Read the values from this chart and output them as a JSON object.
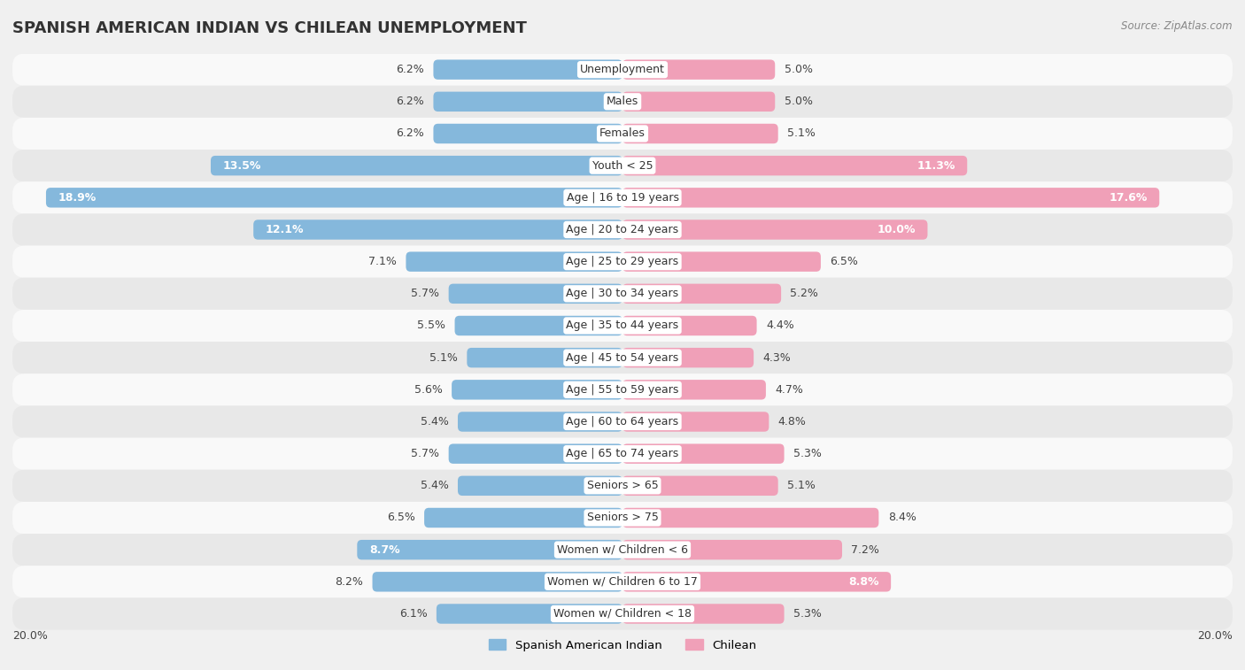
{
  "title": "SPANISH AMERICAN INDIAN VS CHILEAN UNEMPLOYMENT",
  "source": "Source: ZipAtlas.com",
  "categories": [
    "Unemployment",
    "Males",
    "Females",
    "Youth < 25",
    "Age | 16 to 19 years",
    "Age | 20 to 24 years",
    "Age | 25 to 29 years",
    "Age | 30 to 34 years",
    "Age | 35 to 44 years",
    "Age | 45 to 54 years",
    "Age | 55 to 59 years",
    "Age | 60 to 64 years",
    "Age | 65 to 74 years",
    "Seniors > 65",
    "Seniors > 75",
    "Women w/ Children < 6",
    "Women w/ Children 6 to 17",
    "Women w/ Children < 18"
  ],
  "spanish_american_indian": [
    6.2,
    6.2,
    6.2,
    13.5,
    18.9,
    12.1,
    7.1,
    5.7,
    5.5,
    5.1,
    5.6,
    5.4,
    5.7,
    5.4,
    6.5,
    8.7,
    8.2,
    6.1
  ],
  "chilean": [
    5.0,
    5.0,
    5.1,
    11.3,
    17.6,
    10.0,
    6.5,
    5.2,
    4.4,
    4.3,
    4.7,
    4.8,
    5.3,
    5.1,
    8.4,
    7.2,
    8.8,
    5.3
  ],
  "color_sai": "#85b8dc",
  "color_chilean": "#f0a0b8",
  "axis_max": 20.0,
  "bar_height": 0.62,
  "background_color": "#f0f0f0",
  "row_color_light": "#f9f9f9",
  "row_color_dark": "#e8e8e8",
  "legend_label_sai": "Spanish American Indian",
  "legend_label_chilean": "Chilean",
  "white_text_threshold": 8.5,
  "title_fontsize": 13,
  "label_fontsize": 9,
  "cat_fontsize": 9
}
